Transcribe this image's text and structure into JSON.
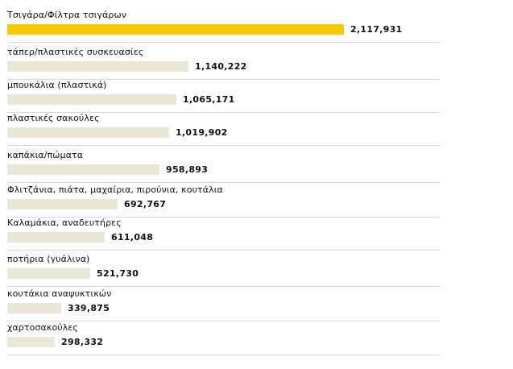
{
  "colors": {
    "highlight": "#f7c900",
    "bar": "#ebe8d9",
    "separator": "#d9d9d9",
    "text": "#111111"
  },
  "chart_data": {
    "type": "bar",
    "orientation": "horizontal",
    "categories": [
      "Τσιγάρα/Φίλτρα τσιγάρων",
      "τάπερ/πλαστικές συσκευασίες",
      "μπουκάλια (πλαστικά)",
      "πλαστικές σακούλες",
      "καπάκια/πώματα",
      "Φλιτζάνια, πιάτα, μαχαίρια, πιρούνια, κουτάλια",
      "Καλαμάκια, αναδευτήρες",
      "ποτήρια (γυάλινα)",
      "κουτάκια αναψυκτικών",
      "χαρτοσακούλες"
    ],
    "values": [
      2117931,
      1140222,
      1065171,
      1019902,
      958893,
      692767,
      611048,
      521730,
      339875,
      298332
    ],
    "value_labels": [
      "2,117,931",
      "1,140,222",
      "1,065,171",
      "1,019,902",
      "958,893",
      "692,767",
      "611,048",
      "521,730",
      "339,875",
      "298,332"
    ],
    "highlighted_index": 0,
    "xlim": [
      0,
      2117931
    ],
    "grid": false
  }
}
